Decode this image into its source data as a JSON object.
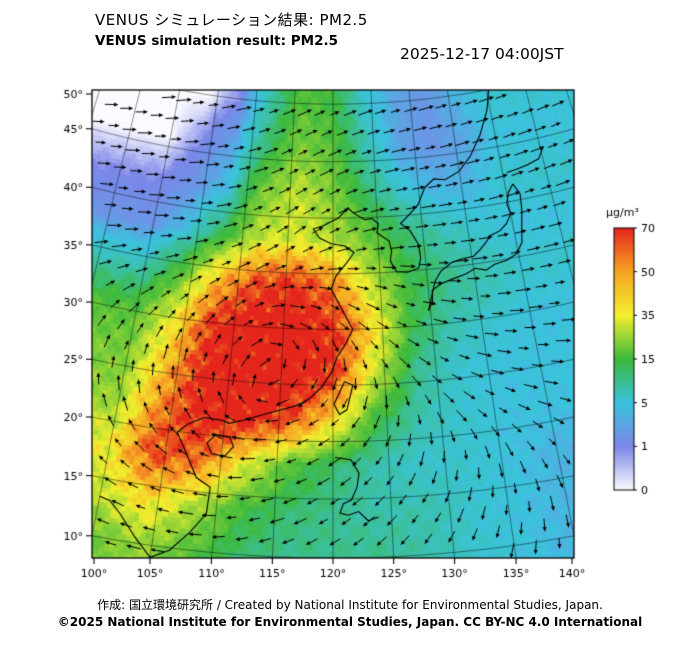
{
  "header": {
    "title_jp": "VENUS シミュレーション結果: PM2.5",
    "title_en": "VENUS simulation result: PM2.5",
    "timestamp": "2025-12-17 04:00JST"
  },
  "footer": {
    "credit": "作成:  国立環境研究所 / Created by National Institute for Environmental Studies, Japan.",
    "copyright": "©2025 National Institute for Environmental Studies, Japan. CC BY-NC 4.0 International"
  },
  "axes": {
    "lat_ticks": [
      "50°",
      "45°",
      "40°",
      "35°",
      "30°",
      "25°",
      "20°",
      "15°",
      "10°"
    ],
    "lon_ticks": [
      "100°",
      "105°",
      "110°",
      "115°",
      "120°",
      "125°",
      "130°",
      "135°",
      "140°"
    ]
  },
  "colorbar": {
    "unit": "μg/m³",
    "ticks": [
      "70",
      "50",
      "35",
      "15",
      "5",
      "1",
      "0"
    ]
  },
  "chart_data": {
    "type": "heatmap",
    "title": "VENUS simulation result: PM2.5",
    "unit": "μg/m³",
    "lon_axis": {
      "min": 100,
      "max": 140,
      "tick_step": 5
    },
    "lat_axis": {
      "min": 10,
      "max": 50,
      "tick_step": 5
    },
    "grid_lon": [
      100,
      104,
      108,
      112,
      116,
      120,
      124,
      128,
      132,
      136,
      140
    ],
    "grid_lat": [
      50,
      46,
      42,
      38,
      34,
      30,
      26,
      22,
      18,
      14,
      10
    ],
    "pm25": [
      [
        0,
        0,
        1,
        8,
        18,
        15,
        6,
        3,
        2,
        4,
        6
      ],
      [
        0,
        1,
        3,
        12,
        22,
        18,
        8,
        3,
        2,
        3,
        5
      ],
      [
        1,
        2,
        5,
        22,
        30,
        22,
        12,
        6,
        4,
        4,
        6
      ],
      [
        2,
        5,
        14,
        30,
        32,
        28,
        20,
        12,
        8,
        6,
        5
      ],
      [
        8,
        18,
        45,
        65,
        70,
        55,
        30,
        15,
        10,
        8,
        6
      ],
      [
        18,
        35,
        70,
        78,
        78,
        70,
        40,
        14,
        8,
        6,
        5
      ],
      [
        22,
        45,
        75,
        78,
        78,
        68,
        30,
        10,
        6,
        5,
        5
      ],
      [
        25,
        55,
        75,
        75,
        65,
        40,
        15,
        8,
        6,
        5,
        5
      ],
      [
        35,
        65,
        60,
        35,
        18,
        12,
        8,
        6,
        6,
        5,
        4
      ],
      [
        30,
        40,
        28,
        16,
        12,
        10,
        8,
        8,
        6,
        5,
        4
      ],
      [
        20,
        25,
        18,
        12,
        10,
        10,
        10,
        8,
        6,
        5,
        4
      ]
    ],
    "wind_direction_deg": [
      [
        15,
        15,
        18,
        22,
        25,
        22,
        18,
        12,
        10,
        8,
        8
      ],
      [
        12,
        12,
        16,
        22,
        28,
        24,
        16,
        10,
        8,
        8,
        8
      ],
      [
        10,
        10,
        15,
        25,
        32,
        26,
        14,
        8,
        5,
        5,
        8
      ],
      [
        8,
        10,
        20,
        32,
        38,
        26,
        12,
        4,
        0,
        0,
        4
      ],
      [
        25,
        30,
        35,
        30,
        10,
        -8,
        -15,
        -12,
        -8,
        -4,
        0
      ],
      [
        55,
        60,
        55,
        30,
        -20,
        -45,
        -40,
        -28,
        -18,
        -10,
        -6
      ],
      [
        85,
        90,
        85,
        60,
        -120,
        -100,
        -70,
        -45,
        -30,
        -20,
        -12
      ],
      [
        115,
        120,
        130,
        170,
        -160,
        -140,
        -115,
        -80,
        -50,
        -35,
        -25
      ],
      [
        140,
        150,
        165,
        -175,
        -160,
        -148,
        -130,
        -110,
        -90,
        -70,
        -55
      ],
      [
        160,
        168,
        178,
        -168,
        -158,
        -148,
        -138,
        -128,
        -112,
        -95,
        -80
      ],
      [
        170,
        175,
        -178,
        -168,
        -158,
        -150,
        -142,
        -132,
        -120,
        -105,
        -92
      ]
    ],
    "color_scale": [
      {
        "value": 0,
        "color": "#fbfbff"
      },
      {
        "value": 1,
        "color": "#7b86e8"
      },
      {
        "value": 5,
        "color": "#3ac3dd"
      },
      {
        "value": 15,
        "color": "#3cb93c"
      },
      {
        "value": 35,
        "color": "#f2ef2e"
      },
      {
        "value": 50,
        "color": "#f6a423"
      },
      {
        "value": 70,
        "color": "#e4251c"
      }
    ]
  },
  "map": {
    "coastlines": [
      [
        [
          100,
          13.4
        ],
        [
          100.9,
          13.2
        ],
        [
          102,
          12.2
        ],
        [
          103.5,
          10.5
        ],
        [
          105,
          9.0
        ],
        [
          106.5,
          9.8
        ],
        [
          108,
          11.5
        ],
        [
          109.2,
          13.2
        ],
        [
          109.3,
          15.5
        ],
        [
          108,
          16.2
        ],
        [
          106.5,
          18.8
        ],
        [
          105.8,
          19.9
        ],
        [
          106.7,
          20.8
        ],
        [
          108.1,
          21.5
        ]
      ],
      [
        [
          108.1,
          21.5
        ],
        [
          109.8,
          21.4
        ],
        [
          110.4,
          21.2
        ],
        [
          111.8,
          21.6
        ],
        [
          113.2,
          22.1
        ],
        [
          114.8,
          22.6
        ],
        [
          116.5,
          23.1
        ],
        [
          117.8,
          23.8
        ],
        [
          118.9,
          24.8
        ],
        [
          119.9,
          26.2
        ],
        [
          120.4,
          27.5
        ],
        [
          121.2,
          28.6
        ],
        [
          122,
          30
        ],
        [
          121.4,
          31
        ],
        [
          120.7,
          32.2
        ],
        [
          119.8,
          33.6
        ],
        [
          120.3,
          34.8
        ],
        [
          121.5,
          36
        ],
        [
          122.3,
          36.9
        ],
        [
          121.3,
          37.5
        ],
        [
          119.8,
          37.7
        ],
        [
          118.5,
          38.2
        ],
        [
          117.8,
          39
        ],
        [
          118.9,
          39.3
        ],
        [
          120.6,
          40
        ],
        [
          121.7,
          40.9
        ],
        [
          122.4,
          40.4
        ],
        [
          123.6,
          39.8
        ],
        [
          124.4,
          39.9
        ]
      ],
      [
        [
          124.4,
          39.9
        ],
        [
          125.1,
          39.4
        ],
        [
          124.9,
          38.6
        ],
        [
          126.2,
          37.8
        ],
        [
          126.4,
          36.9
        ],
        [
          126.2,
          36
        ],
        [
          126.8,
          35
        ],
        [
          128,
          34.9
        ],
        [
          129.2,
          35.2
        ],
        [
          129.5,
          36.1
        ],
        [
          129.4,
          37.3
        ],
        [
          128.6,
          38.6
        ],
        [
          127.6,
          39.3
        ],
        [
          128.6,
          40
        ],
        [
          129.8,
          40.9
        ],
        [
          130.7,
          42.3
        ]
      ],
      [
        [
          130.7,
          42.3
        ],
        [
          131.9,
          43
        ],
        [
          133.2,
          42.8
        ],
        [
          135,
          43.4
        ],
        [
          136.6,
          44.6
        ],
        [
          138.2,
          46.3
        ],
        [
          139.6,
          48.3
        ],
        [
          140.4,
          50.2
        ]
      ],
      [
        [
          129.8,
          31.3
        ],
        [
          130.3,
          32.1
        ],
        [
          130.4,
          33.1
        ],
        [
          131.4,
          33.6
        ],
        [
          132.6,
          33.9
        ],
        [
          134.1,
          34.2
        ],
        [
          135.2,
          34.6
        ],
        [
          136.3,
          34.3
        ],
        [
          137.3,
          34.7
        ],
        [
          138.7,
          34.9
        ],
        [
          139.8,
          35.3
        ],
        [
          140.6,
          36.2
        ],
        [
          140.9,
          37.5
        ],
        [
          141.3,
          39
        ],
        [
          141.5,
          40.5
        ],
        [
          140.9,
          41.5
        ]
      ],
      [
        [
          140.9,
          41.5
        ],
        [
          140.2,
          40.8
        ],
        [
          139.8,
          39.9
        ],
        [
          140,
          38.9
        ],
        [
          139.3,
          38.1
        ],
        [
          138.5,
          37.6
        ],
        [
          137.3,
          37.3
        ],
        [
          136.8,
          36.8
        ],
        [
          136,
          36.2
        ],
        [
          135.2,
          35.7
        ],
        [
          134,
          35.6
        ],
        [
          132.8,
          35.4
        ],
        [
          131.5,
          34.7
        ],
        [
          130.8,
          33.9
        ],
        [
          129.8,
          31.3
        ]
      ],
      [
        [
          140.5,
          42.6
        ],
        [
          141.6,
          42.7
        ],
        [
          143,
          42.9
        ],
        [
          144.5,
          43.2
        ],
        [
          145.4,
          44.2
        ]
      ],
      [
        [
          121.1,
          25.3
        ],
        [
          121.9,
          25
        ],
        [
          121.3,
          22.8
        ],
        [
          120.6,
          22.4
        ],
        [
          120.1,
          23.3
        ],
        [
          121.1,
          25.3
        ]
      ],
      [
        [
          109.3,
          20.1
        ],
        [
          110.6,
          20
        ],
        [
          111,
          19.2
        ],
        [
          110.3,
          18.3
        ],
        [
          109.1,
          18.4
        ],
        [
          108.6,
          19.3
        ],
        [
          109.3,
          20.1
        ]
      ],
      [
        [
          120.2,
          18.6
        ],
        [
          121.6,
          18.4
        ],
        [
          122.3,
          17.2
        ],
        [
          122.1,
          16
        ],
        [
          121.6,
          14.9
        ],
        [
          120.9,
          14.6
        ],
        [
          120.6,
          13.8
        ],
        [
          121.3,
          13.6
        ],
        [
          122.2,
          13.9
        ],
        [
          123,
          13.1
        ],
        [
          123.9,
          13.4
        ]
      ]
    ]
  }
}
